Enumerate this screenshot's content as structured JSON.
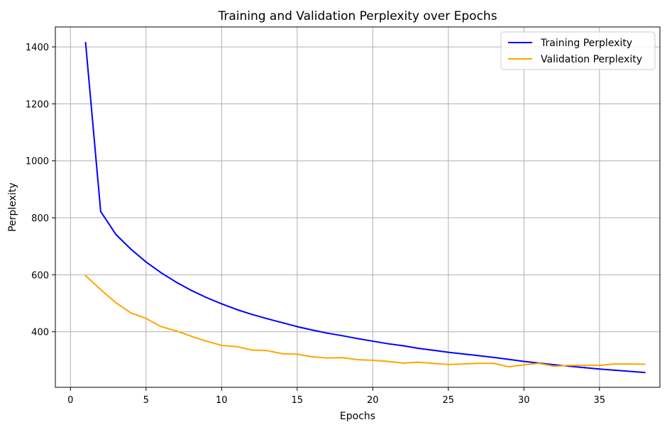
{
  "chart_data": {
    "type": "line",
    "title": "Training and Validation Perplexity over Epochs",
    "xlabel": "Epochs",
    "ylabel": "Perplexity",
    "xlim": [
      -1,
      39
    ],
    "ylim": [
      205,
      1470
    ],
    "xticks": [
      0,
      5,
      10,
      15,
      20,
      25,
      30,
      35
    ],
    "yticks": [
      400,
      600,
      800,
      1000,
      1200,
      1400
    ],
    "grid": true,
    "legend_position": "top-right",
    "x": [
      1,
      2,
      3,
      4,
      5,
      6,
      7,
      8,
      9,
      10,
      11,
      12,
      13,
      14,
      15,
      16,
      17,
      18,
      19,
      20,
      21,
      22,
      23,
      24,
      25,
      26,
      27,
      28,
      29,
      30,
      31,
      32,
      33,
      34,
      35,
      36,
      37,
      38
    ],
    "series": [
      {
        "name": "Training Perplexity",
        "color": "#0000ff",
        "values": [
          1415,
          822,
          742,
          690,
          645,
          607,
          574,
          545,
          520,
          498,
          478,
          461,
          446,
          432,
          418,
          406,
          395,
          386,
          376,
          367,
          358,
          351,
          342,
          335,
          328,
          322,
          316,
          310,
          303,
          296,
          290,
          284,
          279,
          274,
          269,
          265,
          261,
          257
        ]
      },
      {
        "name": "Validation Perplexity",
        "color": "#ffa500",
        "values": [
          597,
          548,
          502,
          466,
          447,
          418,
          403,
          384,
          367,
          352,
          348,
          336,
          334,
          323,
          321,
          312,
          308,
          309,
          302,
          300,
          296,
          290,
          293,
          289,
          285,
          287,
          289,
          289,
          277,
          284,
          289,
          279,
          282,
          282,
          282,
          287,
          287,
          286
        ]
      }
    ]
  }
}
